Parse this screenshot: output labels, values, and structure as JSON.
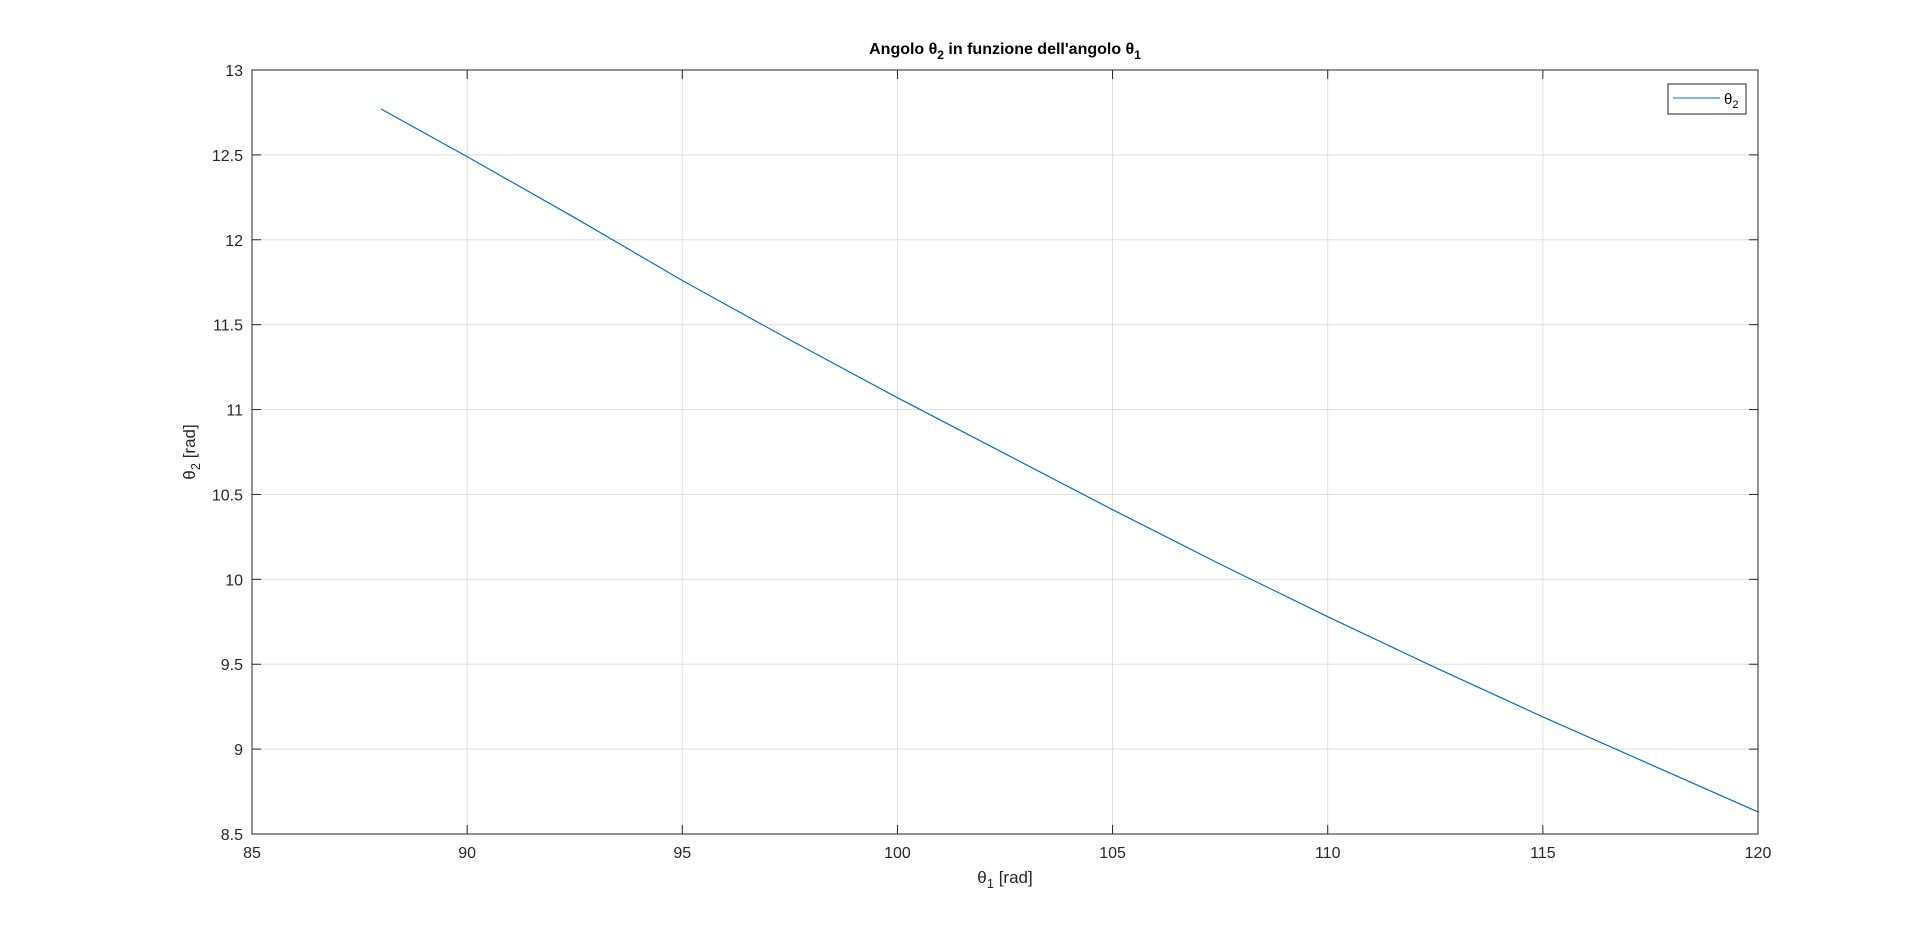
{
  "chart_data": {
    "type": "line",
    "title_main": "Angolo θ",
    "title_sub1": "2",
    "title_mid": " in funzione dell'angolo θ",
    "title_sub2": "1",
    "xlabel_main": "θ",
    "xlabel_sub": "1",
    "xlabel_unit": " [rad]",
    "ylabel_main": "θ",
    "ylabel_sub": "2",
    "ylabel_unit": " [rad]",
    "xlim": [
      85,
      120
    ],
    "ylim": [
      8.5,
      13
    ],
    "xticks": [
      85,
      90,
      95,
      100,
      105,
      110,
      115,
      120
    ],
    "yticks": [
      8.5,
      9,
      9.5,
      10,
      10.5,
      11,
      11.5,
      12,
      12.5,
      13
    ],
    "xtick_labels": [
      "85",
      "90",
      "95",
      "100",
      "105",
      "110",
      "115",
      "120"
    ],
    "ytick_labels": [
      "8.5",
      "9",
      "9.5",
      "10",
      "10.5",
      "11",
      "11.5",
      "12",
      "12.5",
      "13"
    ],
    "grid": true,
    "legend_position": "top-right",
    "series": [
      {
        "name_main": "θ",
        "name_sub": "2",
        "color": "#0072BD",
        "x": [
          88,
          90,
          92.5,
          95,
          97.5,
          100,
          102.5,
          105,
          107.5,
          110,
          112.5,
          115,
          117.5,
          120
        ],
        "y": [
          12.77,
          12.49,
          12.13,
          11.76,
          11.41,
          11.07,
          10.74,
          10.41,
          10.09,
          9.78,
          9.48,
          9.19,
          8.91,
          8.63
        ]
      }
    ]
  }
}
